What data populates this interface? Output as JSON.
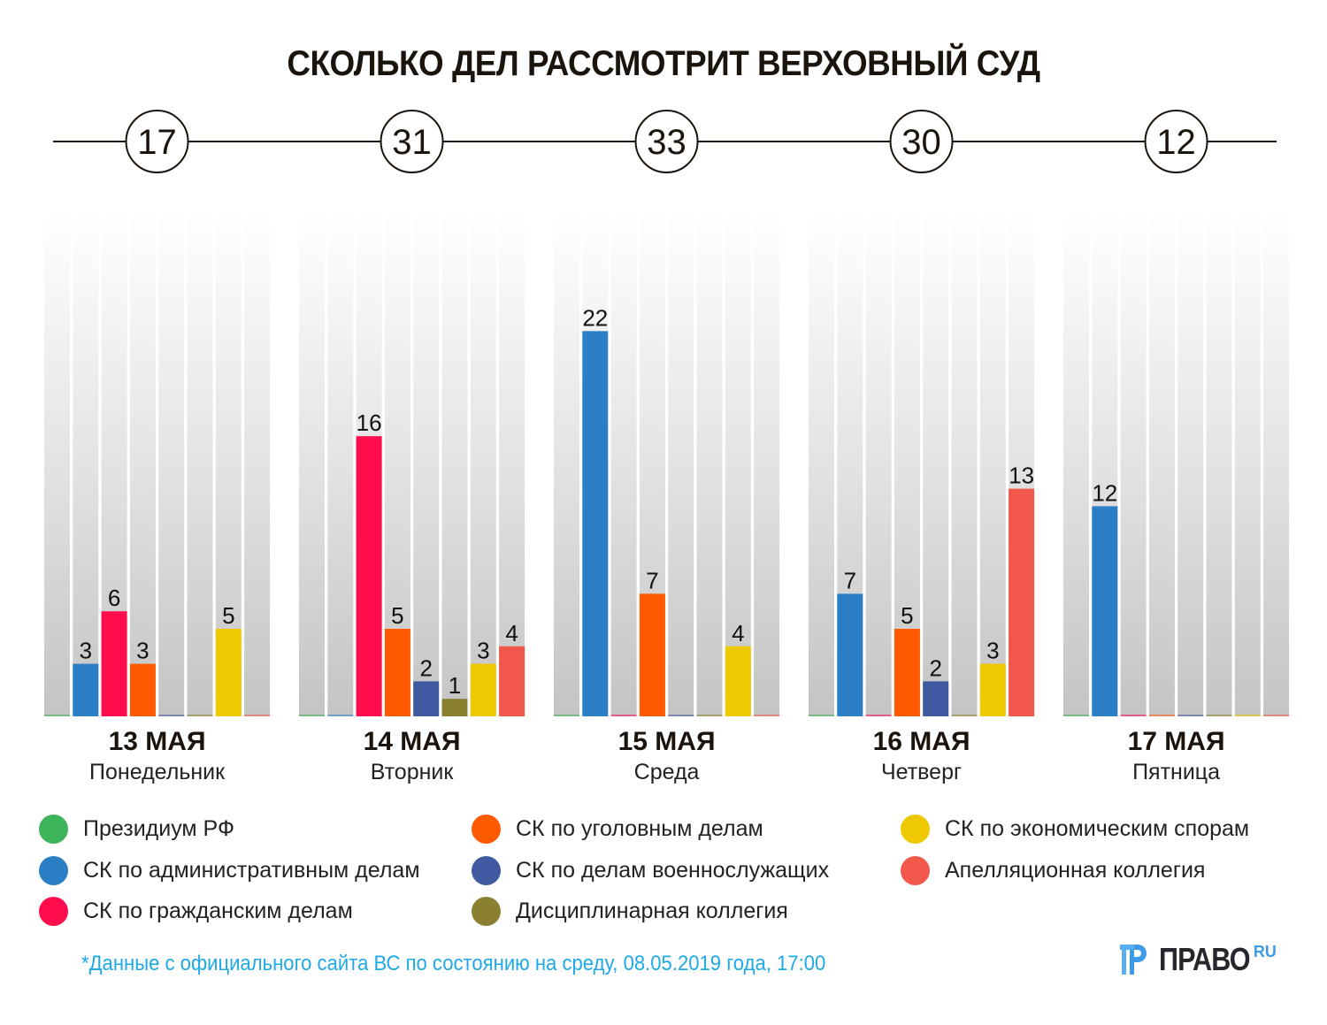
{
  "title": "СКОЛЬКО ДЕЛ РАССМОТРИТ ВЕРХОВНЫЙ СУД",
  "chart_data": {
    "type": "bar",
    "title": "СКОЛЬКО ДЕЛ РАССМОТРИТ ВЕРХОВНЫЙ СУД",
    "xlabel": "",
    "ylabel": "",
    "ylim": [
      0,
      29
    ],
    "grid": false,
    "legend_placement": "bottom",
    "categories": [
      {
        "date": "13 МАЯ",
        "weekday": "Понедельник",
        "total": "17"
      },
      {
        "date": "14 МАЯ",
        "weekday": "Вторник",
        "total": "31"
      },
      {
        "date": "15 МАЯ",
        "weekday": "Среда",
        "total": "33"
      },
      {
        "date": "16 МАЯ",
        "weekday": "Четверг",
        "total": "30"
      },
      {
        "date": "17 МАЯ",
        "weekday": "Пятница",
        "total": "12"
      }
    ],
    "series": [
      {
        "name": "Президиум РФ",
        "color": "#3db35a",
        "values": [
          0,
          0,
          0,
          0,
          0
        ]
      },
      {
        "name": "СК по административным делам",
        "color": "#2b7fc4",
        "values": [
          3,
          0,
          22,
          7,
          12
        ]
      },
      {
        "name": "СК по гражданским делам",
        "color": "#ff0d4d",
        "values": [
          6,
          16,
          0,
          0,
          0
        ]
      },
      {
        "name": "СК по уголовным делам",
        "color": "#ff5a00",
        "values": [
          3,
          5,
          7,
          5,
          0
        ]
      },
      {
        "name": "СК по делам военнослужащих",
        "color": "#3f5aa0",
        "values": [
          0,
          2,
          0,
          2,
          0
        ]
      },
      {
        "name": "Дисциплинарная коллегия",
        "color": "#8a8030",
        "values": [
          0,
          1,
          0,
          0,
          0
        ]
      },
      {
        "name": "СК по экономическим спорам",
        "color": "#eec800",
        "values": [
          5,
          3,
          4,
          3,
          0
        ]
      },
      {
        "name": "Апелляционная коллегия",
        "color": "#f2574b",
        "values": [
          0,
          4,
          0,
          13,
          0
        ]
      }
    ]
  },
  "footnote": "*Данные с официального сайта ВС по состоянию на среду, 08.05.2019 года, 17:00",
  "logo": {
    "text": "ПРАВО",
    "suffix": "RU"
  }
}
